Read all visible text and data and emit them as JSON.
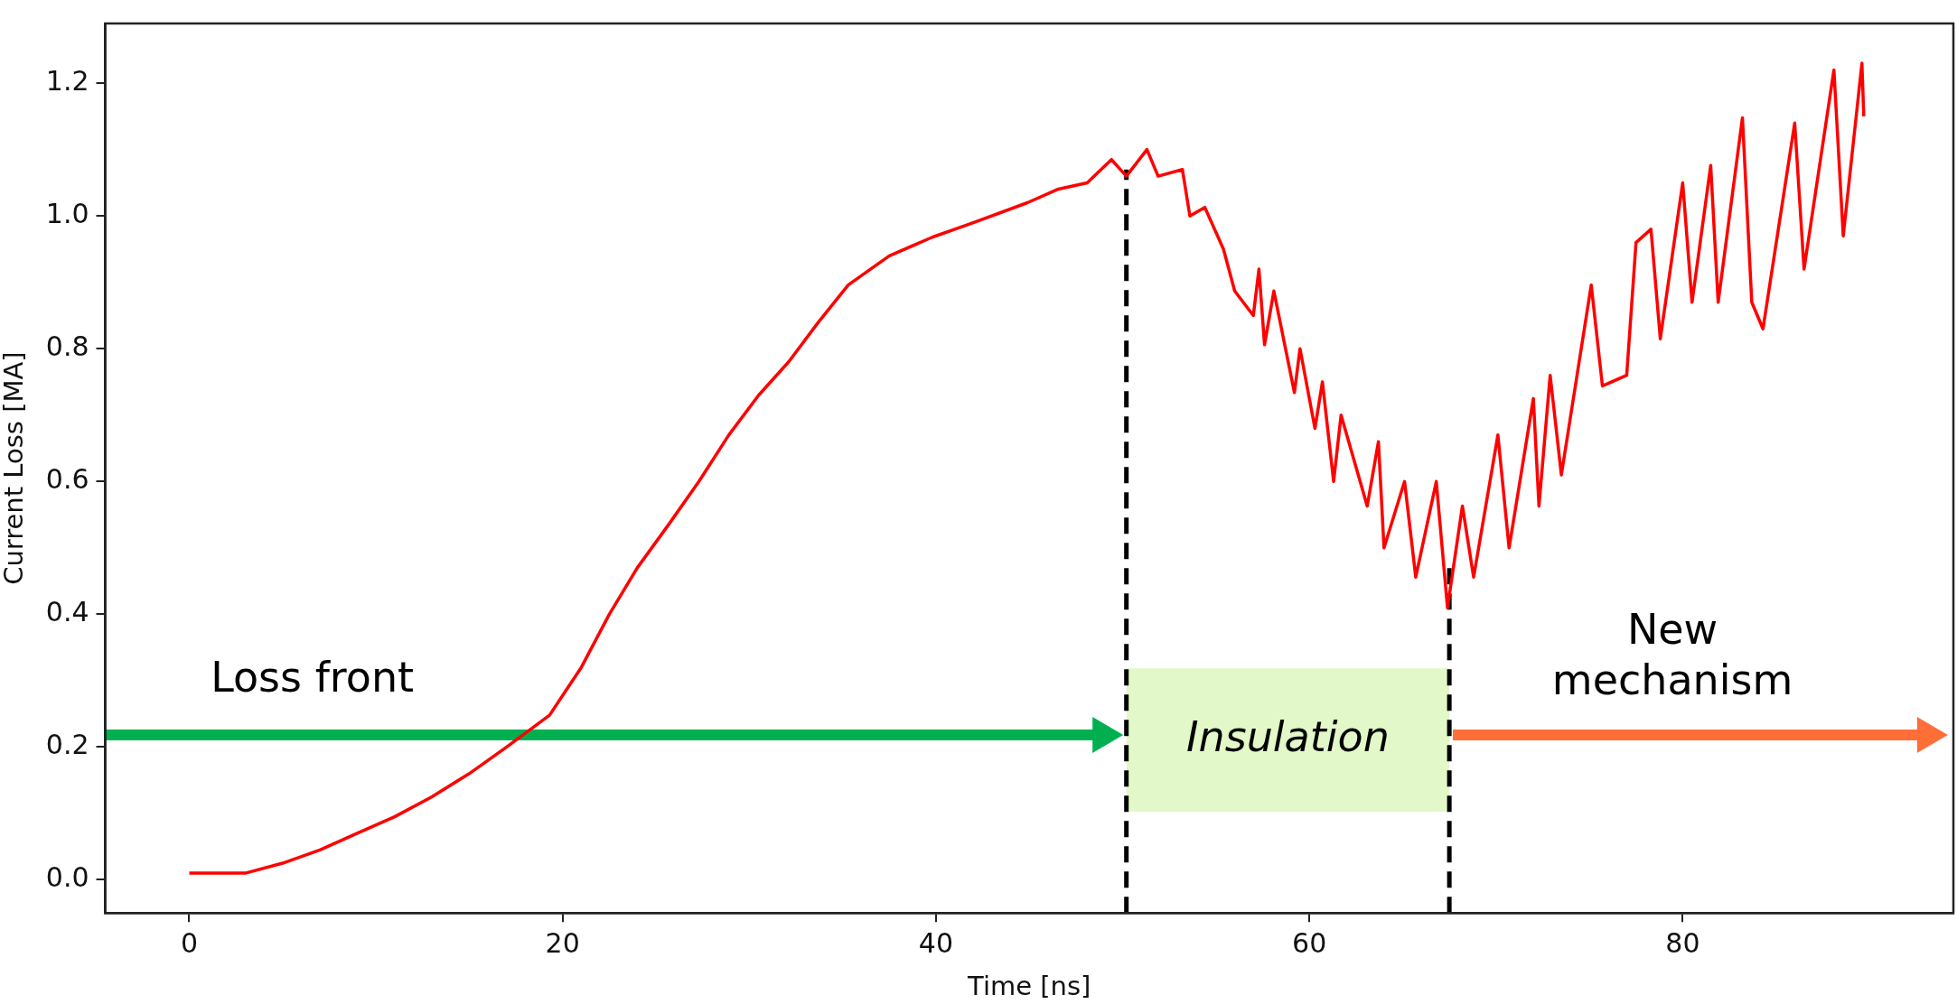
{
  "chart_data": {
    "type": "line",
    "xlabel": "Time [ns]",
    "ylabel": "Current Loss [MA]",
    "xlim": [
      -4.5,
      94.5
    ],
    "xticks": [
      0,
      20,
      40,
      60,
      80
    ],
    "ylim": [
      -0.05,
      1.29
    ],
    "yticks": [
      {
        "value": 0,
        "label": "0.0"
      },
      {
        "value": 0.2,
        "label": "0.2"
      },
      {
        "value": 0.4,
        "label": "0.4"
      },
      {
        "value": 0.6,
        "label": "0.6"
      },
      {
        "value": 0.8,
        "label": "0.8"
      },
      {
        "value": 1.0,
        "label": "1.0"
      },
      {
        "value": 1.2,
        "label": "1.2"
      }
    ],
    "grid": false,
    "legend": false,
    "series": [
      {
        "color": "#ff0000",
        "x": [
          0,
          3,
          5,
          7,
          9,
          11,
          13,
          15,
          17,
          19.3,
          21,
          22.5,
          24,
          25.7,
          27.3,
          28.9,
          30.5,
          32.1,
          33.7,
          35.3,
          37.5,
          39.8,
          42,
          44.9,
          46.5,
          48.1,
          49.4,
          50.2,
          51.3,
          51.9,
          53.2,
          53.6,
          54.4,
          55.4,
          56.0,
          57.0,
          57.3,
          57.6,
          58.1,
          59.2,
          59.5,
          60.3,
          60.7,
          61.3,
          61.7,
          63.1,
          63.7,
          64.0,
          65.1,
          65.7,
          66.8,
          67.4,
          68.2,
          68.8,
          70.1,
          70.7,
          72.0,
          72.3,
          72.9,
          73.5,
          75.1,
          75.7,
          77.0,
          77.5,
          78.3,
          78.8,
          80.0,
          80.5,
          81.5,
          81.9,
          83.2,
          83.7,
          84.3,
          86.0,
          86.5,
          88.1,
          88.6,
          89.6,
          89.7
        ],
        "values": [
          0.01,
          0.01,
          0.025,
          0.045,
          0.07,
          0.095,
          0.125,
          0.16,
          0.2,
          0.248,
          0.32,
          0.4,
          0.47,
          0.536,
          0.6,
          0.67,
          0.73,
          0.78,
          0.84,
          0.896,
          0.94,
          0.968,
          0.99,
          1.02,
          1.04,
          1.05,
          1.085,
          1.06,
          1.1,
          1.06,
          1.07,
          1.0,
          1.013,
          0.95,
          0.887,
          0.85,
          0.92,
          0.806,
          0.887,
          0.734,
          0.8,
          0.68,
          0.75,
          0.6,
          0.7,
          0.563,
          0.66,
          0.5,
          0.6,
          0.456,
          0.6,
          0.41,
          0.563,
          0.456,
          0.67,
          0.5,
          0.725,
          0.563,
          0.76,
          0.61,
          0.896,
          0.744,
          0.76,
          0.96,
          0.98,
          0.815,
          1.05,
          0.87,
          1.076,
          0.87,
          1.148,
          0.87,
          0.83,
          1.14,
          0.92,
          1.22,
          0.97,
          1.23,
          1.15
        ]
      },
      {
        "type": "line",
        "color": "#000000",
        "line_style": "dashed",
        "x": [
          50.2,
          50.2
        ],
        "values": [
          -0.05,
          1.07
        ]
      },
      {
        "type": "line",
        "color": "#000000",
        "line_style": "dashed",
        "x": [
          67.5,
          67.5
        ],
        "values": [
          -0.05,
          0.47
        ]
      }
    ],
    "bands": [
      {
        "axis": "x",
        "from": 50.2,
        "to": 67.5,
        "label": "Insulation",
        "color": "#e2f8c8"
      }
    ],
    "annotations": [
      "Loss front",
      "New mechanism"
    ]
  }
}
